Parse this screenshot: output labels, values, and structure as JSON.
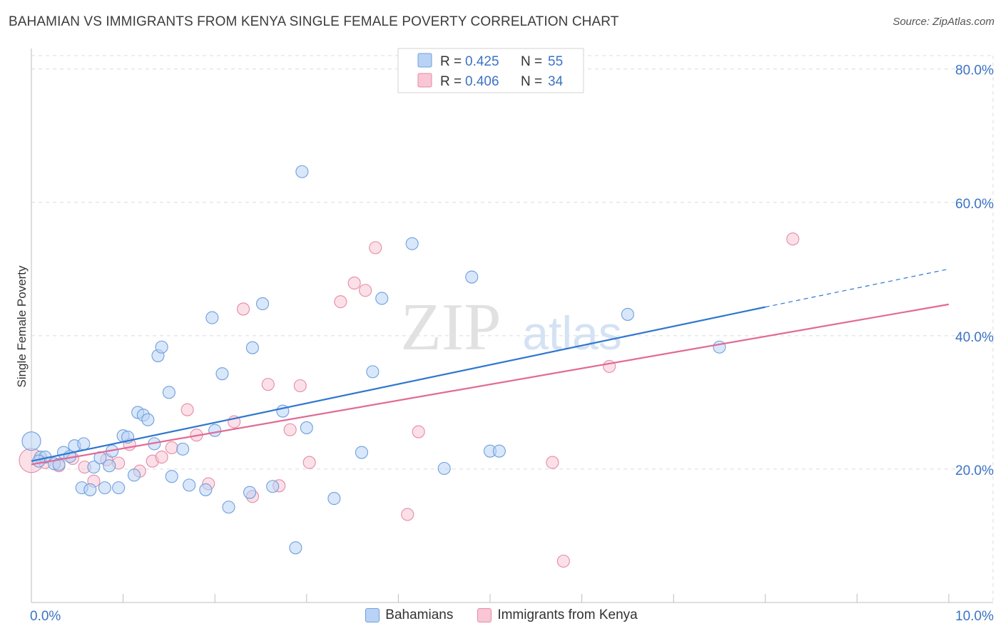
{
  "header": {
    "title": "BAHAMIAN VS IMMIGRANTS FROM KENYA SINGLE FEMALE POVERTY CORRELATION CHART",
    "source": "Source: ZipAtlas.com"
  },
  "watermark": {
    "zip": "ZIP",
    "atlas": "atlas"
  },
  "colors": {
    "blue_fill": "#b8d3f5",
    "blue_stroke": "#6f9fdc",
    "blue_line": "#2f76d0",
    "pink_fill": "#f8c6d4",
    "pink_stroke": "#e68aa7",
    "pink_line": "#e26a93",
    "axis_text": "#3b73c4",
    "grid": "#dcdcdc"
  },
  "chart_data": {
    "type": "scatter",
    "ylabel": "Single Female Poverty",
    "xlim": [
      0,
      10
    ],
    "ylim": [
      0,
      82
    ],
    "x_tick_labels": [
      {
        "value": 0,
        "label": "0.0%"
      },
      {
        "value": 10,
        "label": "10.0%"
      }
    ],
    "y_tick_labels": [
      {
        "value": 20,
        "label": "20.0%"
      },
      {
        "value": 40,
        "label": "40.0%"
      },
      {
        "value": 60,
        "label": "60.0%"
      },
      {
        "value": 80,
        "label": "80.0%"
      }
    ],
    "grid": true,
    "legend_position": "top-center",
    "series": [
      {
        "name": "Bahamians",
        "color": "#b8d3f5",
        "stats": {
          "r_label": "R =",
          "r": "0.425",
          "n_label": "N =",
          "n": "55"
        },
        "trend": {
          "x0": 0,
          "y0": 21.2,
          "x1": 8.0,
          "y1": 44.3,
          "dash_to_x": 10.0,
          "dash_to_y": 50.0
        },
        "points": [
          {
            "x": 0.0,
            "y": 24.2,
            "s": 13
          },
          {
            "x": 0.1,
            "y": 21.8
          },
          {
            "x": 0.15,
            "y": 21.8
          },
          {
            "x": 0.25,
            "y": 20.8
          },
          {
            "x": 0.35,
            "y": 22.5
          },
          {
            "x": 0.42,
            "y": 21.9
          },
          {
            "x": 0.47,
            "y": 23.5
          },
          {
            "x": 0.55,
            "y": 17.2
          },
          {
            "x": 0.57,
            "y": 23.8
          },
          {
            "x": 0.64,
            "y": 16.9
          },
          {
            "x": 0.68,
            "y": 20.3
          },
          {
            "x": 0.75,
            "y": 21.7
          },
          {
            "x": 0.8,
            "y": 17.2
          },
          {
            "x": 0.85,
            "y": 20.5
          },
          {
            "x": 0.88,
            "y": 22.7
          },
          {
            "x": 0.95,
            "y": 17.2
          },
          {
            "x": 1.0,
            "y": 25.0
          },
          {
            "x": 1.05,
            "y": 24.8
          },
          {
            "x": 1.12,
            "y": 19.1
          },
          {
            "x": 1.16,
            "y": 28.5
          },
          {
            "x": 1.22,
            "y": 28.1
          },
          {
            "x": 1.27,
            "y": 27.4
          },
          {
            "x": 1.34,
            "y": 23.8
          },
          {
            "x": 1.38,
            "y": 37.0
          },
          {
            "x": 1.42,
            "y": 38.3
          },
          {
            "x": 1.5,
            "y": 31.5
          },
          {
            "x": 1.53,
            "y": 18.9
          },
          {
            "x": 1.65,
            "y": 23.0
          },
          {
            "x": 1.72,
            "y": 17.6
          },
          {
            "x": 1.9,
            "y": 16.9
          },
          {
            "x": 1.97,
            "y": 42.7
          },
          {
            "x": 2.0,
            "y": 25.8
          },
          {
            "x": 2.08,
            "y": 34.3
          },
          {
            "x": 2.15,
            "y": 14.3
          },
          {
            "x": 2.38,
            "y": 16.5
          },
          {
            "x": 2.41,
            "y": 38.2
          },
          {
            "x": 2.52,
            "y": 44.8
          },
          {
            "x": 2.63,
            "y": 17.4
          },
          {
            "x": 2.74,
            "y": 28.7
          },
          {
            "x": 2.88,
            "y": 8.2
          },
          {
            "x": 2.95,
            "y": 64.6
          },
          {
            "x": 3.0,
            "y": 26.2
          },
          {
            "x": 3.3,
            "y": 15.6
          },
          {
            "x": 3.6,
            "y": 22.5
          },
          {
            "x": 3.72,
            "y": 34.6
          },
          {
            "x": 3.82,
            "y": 45.6
          },
          {
            "x": 4.15,
            "y": 53.8
          },
          {
            "x": 4.5,
            "y": 20.1
          },
          {
            "x": 4.8,
            "y": 48.8
          },
          {
            "x": 5.0,
            "y": 22.7
          },
          {
            "x": 5.1,
            "y": 22.7
          },
          {
            "x": 6.5,
            "y": 43.2
          },
          {
            "x": 7.5,
            "y": 38.3
          },
          {
            "x": 0.08,
            "y": 21.2
          },
          {
            "x": 0.3,
            "y": 20.7
          }
        ]
      },
      {
        "name": "Immigrants from Kenya",
        "color": "#f8c6d4",
        "stats": {
          "r_label": "R =",
          "r": "0.406",
          "n_label": "N =",
          "n": "34"
        },
        "trend": {
          "x0": 0,
          "y0": 20.7,
          "x1": 10.0,
          "y1": 44.7
        },
        "points": [
          {
            "x": 0.0,
            "y": 21.3,
            "s": 17
          },
          {
            "x": 0.15,
            "y": 21.0
          },
          {
            "x": 0.3,
            "y": 20.5
          },
          {
            "x": 0.45,
            "y": 21.6
          },
          {
            "x": 0.58,
            "y": 20.3
          },
          {
            "x": 0.68,
            "y": 18.2
          },
          {
            "x": 0.82,
            "y": 21.4
          },
          {
            "x": 0.95,
            "y": 20.9
          },
          {
            "x": 1.07,
            "y": 23.7
          },
          {
            "x": 1.18,
            "y": 19.7
          },
          {
            "x": 1.32,
            "y": 21.2
          },
          {
            "x": 1.42,
            "y": 21.8
          },
          {
            "x": 1.53,
            "y": 23.2
          },
          {
            "x": 1.7,
            "y": 28.9
          },
          {
            "x": 1.8,
            "y": 25.1
          },
          {
            "x": 1.93,
            "y": 17.8
          },
          {
            "x": 2.21,
            "y": 27.1
          },
          {
            "x": 2.31,
            "y": 44.0
          },
          {
            "x": 2.41,
            "y": 15.9
          },
          {
            "x": 2.58,
            "y": 32.7
          },
          {
            "x": 2.7,
            "y": 17.5
          },
          {
            "x": 2.82,
            "y": 25.9
          },
          {
            "x": 2.93,
            "y": 32.5
          },
          {
            "x": 3.03,
            "y": 21.0
          },
          {
            "x": 3.37,
            "y": 45.1
          },
          {
            "x": 3.52,
            "y": 47.9
          },
          {
            "x": 3.64,
            "y": 46.8
          },
          {
            "x": 3.75,
            "y": 53.2
          },
          {
            "x": 4.1,
            "y": 13.2
          },
          {
            "x": 4.22,
            "y": 25.6
          },
          {
            "x": 5.68,
            "y": 21.0
          },
          {
            "x": 5.8,
            "y": 6.2
          },
          {
            "x": 6.3,
            "y": 35.4
          },
          {
            "x": 8.3,
            "y": 54.5
          }
        ]
      }
    ]
  }
}
